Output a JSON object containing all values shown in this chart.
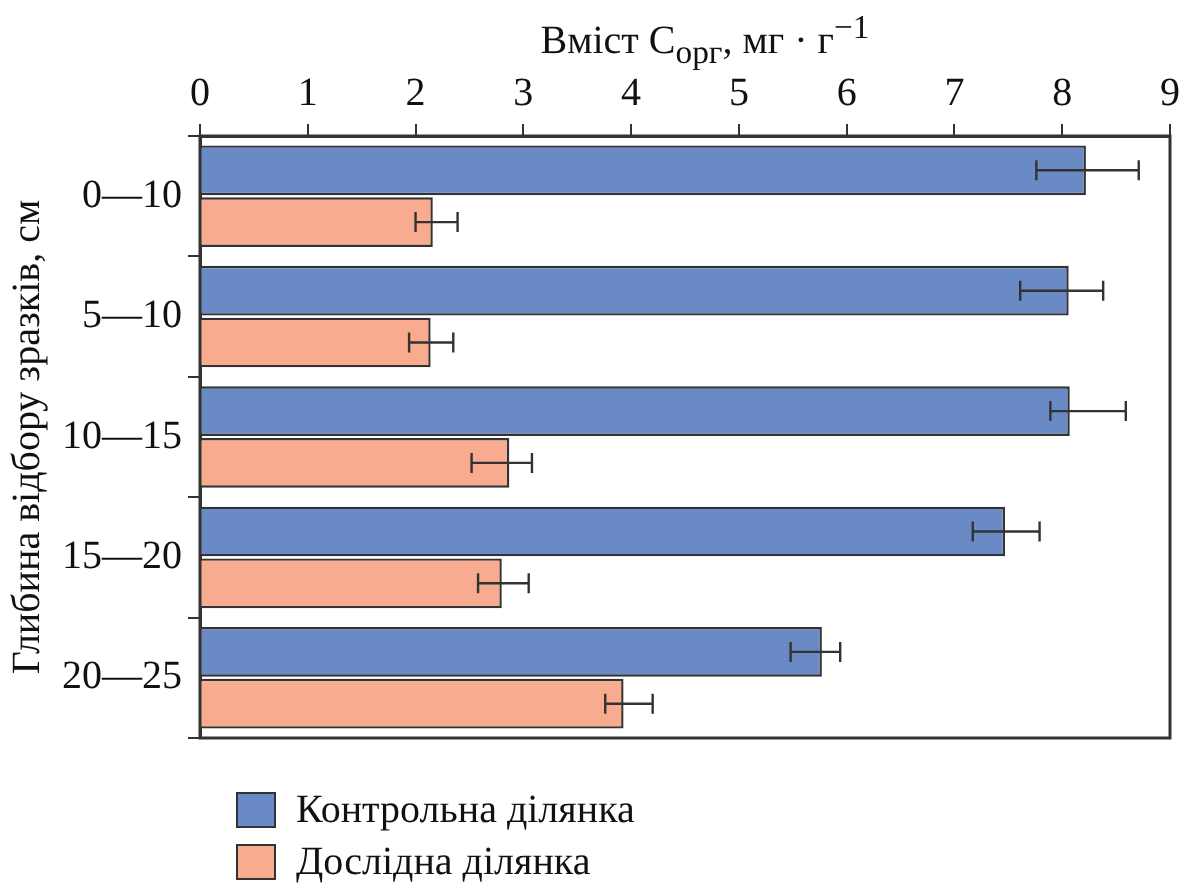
{
  "chart_data": {
    "type": "bar",
    "orientation": "horizontal",
    "xlabel": "Вміст C$_{орг}$, мг · г$^{−1}$",
    "ylabel": "Глибина відбору зразків, см",
    "categories": [
      "0—10",
      "5—10",
      "10—15",
      "15—20",
      "20—25"
    ],
    "series": [
      {
        "name": "Контрольна ділянка",
        "color": "#6a8ac6",
        "values": [
          8.22,
          8.06,
          8.07,
          7.47,
          5.77
        ],
        "errors": [
          [
            7.76,
            8.71
          ],
          [
            7.61,
            8.38
          ],
          [
            7.89,
            8.59
          ],
          [
            7.17,
            7.79
          ],
          [
            5.48,
            5.94
          ]
        ]
      },
      {
        "name": "Дослідна ділянка",
        "color": "#f9ab90",
        "values": [
          2.16,
          2.14,
          2.87,
          2.8,
          3.93
        ],
        "errors": [
          [
            2.0,
            2.39
          ],
          [
            1.94,
            2.35
          ],
          [
            2.52,
            3.08
          ],
          [
            2.58,
            3.05
          ],
          [
            3.76,
            4.2
          ]
        ]
      }
    ],
    "xlim": [
      0,
      9
    ],
    "xticks": [
      0,
      1,
      2,
      3,
      4,
      5,
      6,
      7,
      8,
      9
    ],
    "grid": false,
    "legend": "bottom"
  }
}
